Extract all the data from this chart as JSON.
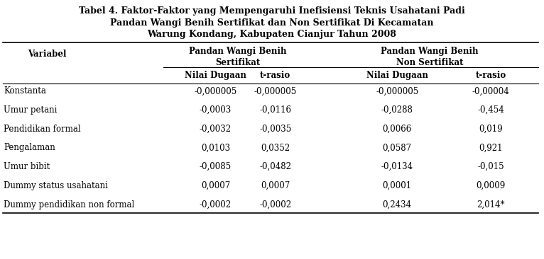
{
  "title_line1": "Tabel 4. Faktor-Faktor yang Mempengaruhi Inefisiensi Teknis Usahatani Padi",
  "title_line2": "Pandan Wangi Benih Sertifikat dan Non Sertifikat Di Kecamatan",
  "title_line3": "Warung Kondang, Kabupaten Cianjur Tahun 2008",
  "col_group1_line1": "Pandan Wangi Benih",
  "col_group1_line2": "Sertifikat",
  "col_group2_line1": "Pandan Wangi Benih",
  "col_group2_line2": "Non Sertifikat",
  "header_variabel": "Variabel",
  "header_nilai1": "Nilai Dugaan",
  "header_trasio1": "t-rasio",
  "header_nilai2": "Nilai Dugaan",
  "header_trasio2": "t-rasio",
  "rows": [
    [
      "Konstanta",
      "-0,000005",
      "-0,000005",
      "-0,000005",
      "-0,00004"
    ],
    [
      "Umur petani",
      "-0,0003",
      "-0,0116",
      "-0,0288",
      "-0,454"
    ],
    [
      "Pendidikan formal",
      "-0,0032",
      "-0,0035",
      "0,0066",
      "0,019"
    ],
    [
      "Pengalaman",
      "0,0103",
      "0,0352",
      "0,0587",
      "0,921"
    ],
    [
      "Umur bibit",
      "-0,0085",
      "-0,0482",
      "-0,0134",
      "-0,015"
    ],
    [
      "Dummy status usahatani",
      "0,0007",
      "0,0007",
      "0,0001",
      "0,0009"
    ],
    [
      "Dummy pendidikan non formal",
      "-0,0002",
      "-0,0002",
      "0,2434",
      "2,014*"
    ]
  ],
  "bg_color": "#ffffff",
  "text_color": "#000000",
  "title_fontsize": 9.0,
  "header_fontsize": 8.5,
  "body_fontsize": 8.5,
  "font_family": "DejaVu Serif"
}
